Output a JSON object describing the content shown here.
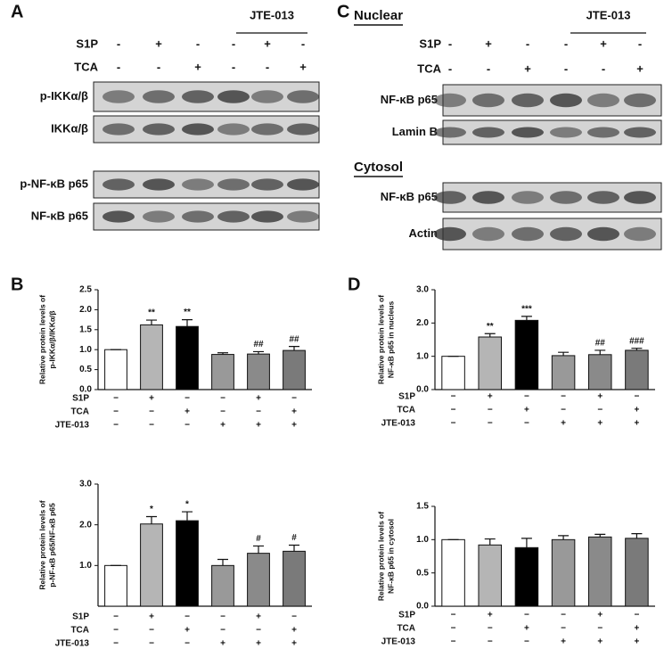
{
  "panels": [
    "A",
    "B",
    "C",
    "D"
  ],
  "blots_a": {
    "group": "JTE-013",
    "treatments": [
      {
        "name": "S1P",
        "signs": [
          "-",
          "+",
          "-",
          "-",
          "+",
          "-"
        ]
      },
      {
        "name": "TCA",
        "signs": [
          "-",
          "-",
          "+",
          "-",
          "-",
          "+"
        ]
      }
    ],
    "bands": [
      "p-IKKα/β",
      "IKKα/β",
      "p-NF-κB p65",
      "NF-κB p65"
    ]
  },
  "blots_c": {
    "group": "JTE-013",
    "treatments": [
      {
        "name": "S1P",
        "signs": [
          "-",
          "+",
          "-",
          "-",
          "+",
          "-"
        ]
      },
      {
        "name": "TCA",
        "signs": [
          "-",
          "-",
          "+",
          "-",
          "-",
          "+"
        ]
      }
    ],
    "headings": [
      "Nuclear",
      "Cytosol"
    ],
    "bands": [
      "NF-κB p65",
      "Lamin B",
      "NF-κB p65",
      "Actin"
    ]
  },
  "chart_data": [
    {
      "type": "bar",
      "ylabel": [
        "Relative protein levels of",
        "p-IKKα/β/IKKα/β"
      ],
      "values": [
        1.0,
        1.62,
        1.58,
        0.88,
        0.89,
        0.98
      ],
      "errors": [
        0,
        0.12,
        0.17,
        0.04,
        0.06,
        0.1
      ],
      "annotations": [
        null,
        "**",
        "**",
        null,
        "##",
        "##"
      ],
      "colors": [
        "#ffffff",
        "#b5b5b5",
        "#000000",
        "#999999",
        "#8a8a8a",
        "#7a7a7a"
      ],
      "ylim": [
        0,
        2.5
      ],
      "yticks": [
        {
          "value": 0,
          "label": "0.0"
        },
        0.5,
        {
          "value": 1,
          "label": "1.0"
        },
        1.5,
        {
          "value": 2,
          "label": "2.0"
        },
        2.5
      ],
      "conditions": [
        {
          "name": "S1P",
          "signs": [
            "−",
            "+",
            "−",
            "−",
            "+",
            "−"
          ]
        },
        {
          "name": "TCA",
          "signs": [
            "−",
            "−",
            "+",
            "−",
            "−",
            "+"
          ]
        },
        {
          "name": "JTE-013",
          "signs": [
            "−",
            "−",
            "−",
            "+",
            "+",
            "+"
          ]
        }
      ]
    },
    {
      "type": "bar",
      "ylabel": [
        "Relative protein levels of",
        "p-NF-κB p65/NF-κB p65"
      ],
      "values": [
        1.0,
        2.02,
        2.1,
        1.0,
        1.3,
        1.35
      ],
      "errors": [
        0,
        0.18,
        0.22,
        0.15,
        0.18,
        0.15
      ],
      "annotations": [
        null,
        "*",
        "*",
        null,
        "#",
        "#"
      ],
      "colors": [
        "#ffffff",
        "#b5b5b5",
        "#000000",
        "#999999",
        "#8a8a8a",
        "#7a7a7a"
      ],
      "ylim": [
        0,
        3
      ],
      "yticks": [
        {
          "value": 1,
          "label": "1.0"
        },
        {
          "value": 2,
          "label": "2.0"
        },
        {
          "value": 3,
          "label": "3.0"
        }
      ],
      "conditions": [
        {
          "name": "S1P",
          "signs": [
            "−",
            "+",
            "−",
            "−",
            "+",
            "−"
          ]
        },
        {
          "name": "TCA",
          "signs": [
            "−",
            "−",
            "+",
            "−",
            "−",
            "+"
          ]
        },
        {
          "name": "JTE-013",
          "signs": [
            "−",
            "−",
            "−",
            "+",
            "+",
            "+"
          ]
        }
      ]
    },
    {
      "type": "bar",
      "ylabel": [
        "Relative protein levels of",
        "NF-κB p65 in nucleus"
      ],
      "values": [
        1.0,
        1.58,
        2.08,
        1.02,
        1.05,
        1.18
      ],
      "errors": [
        0,
        0.1,
        0.12,
        0.1,
        0.13,
        0.06
      ],
      "annotations": [
        null,
        "**",
        "***",
        null,
        "##",
        "###"
      ],
      "colors": [
        "#ffffff",
        "#b5b5b5",
        "#000000",
        "#999999",
        "#8a8a8a",
        "#7a7a7a"
      ],
      "ylim": [
        0,
        3
      ],
      "yticks": [
        {
          "value": 0,
          "label": "0.0"
        },
        {
          "value": 1,
          "label": "1.0"
        },
        {
          "value": 2,
          "label": "2.0"
        },
        {
          "value": 3,
          "label": "3.0"
        }
      ],
      "conditions": [
        {
          "name": "S1P",
          "signs": [
            "−",
            "+",
            "−",
            "−",
            "+",
            "−"
          ]
        },
        {
          "name": "TCA",
          "signs": [
            "−",
            "−",
            "+",
            "−",
            "−",
            "+"
          ]
        },
        {
          "name": "JTE-013",
          "signs": [
            "−",
            "−",
            "−",
            "+",
            "+",
            "+"
          ]
        }
      ]
    },
    {
      "type": "bar",
      "ylabel": [
        "Relative protein levels of",
        "NF-κB p65 in cytosol"
      ],
      "values": [
        1.0,
        0.92,
        0.88,
        1.0,
        1.04,
        1.02
      ],
      "errors": [
        0,
        0.09,
        0.14,
        0.06,
        0.04,
        0.07
      ],
      "annotations": [
        null,
        null,
        null,
        null,
        null,
        null
      ],
      "colors": [
        "#ffffff",
        "#b5b5b5",
        "#000000",
        "#999999",
        "#8a8a8a",
        "#7a7a7a"
      ],
      "ylim": [
        0,
        1.5
      ],
      "yticks": [
        {
          "value": 0,
          "label": "0.0"
        },
        0.5,
        {
          "value": 1,
          "label": "1.0"
        },
        1.5
      ],
      "conditions": [
        {
          "name": "S1P",
          "signs": [
            "−",
            "+",
            "−",
            "−",
            "+",
            "−"
          ]
        },
        {
          "name": "TCA",
          "signs": [
            "−",
            "−",
            "+",
            "−",
            "−",
            "+"
          ]
        },
        {
          "name": "JTE-013",
          "signs": [
            "−",
            "−",
            "−",
            "+",
            "+",
            "+"
          ]
        }
      ]
    }
  ]
}
